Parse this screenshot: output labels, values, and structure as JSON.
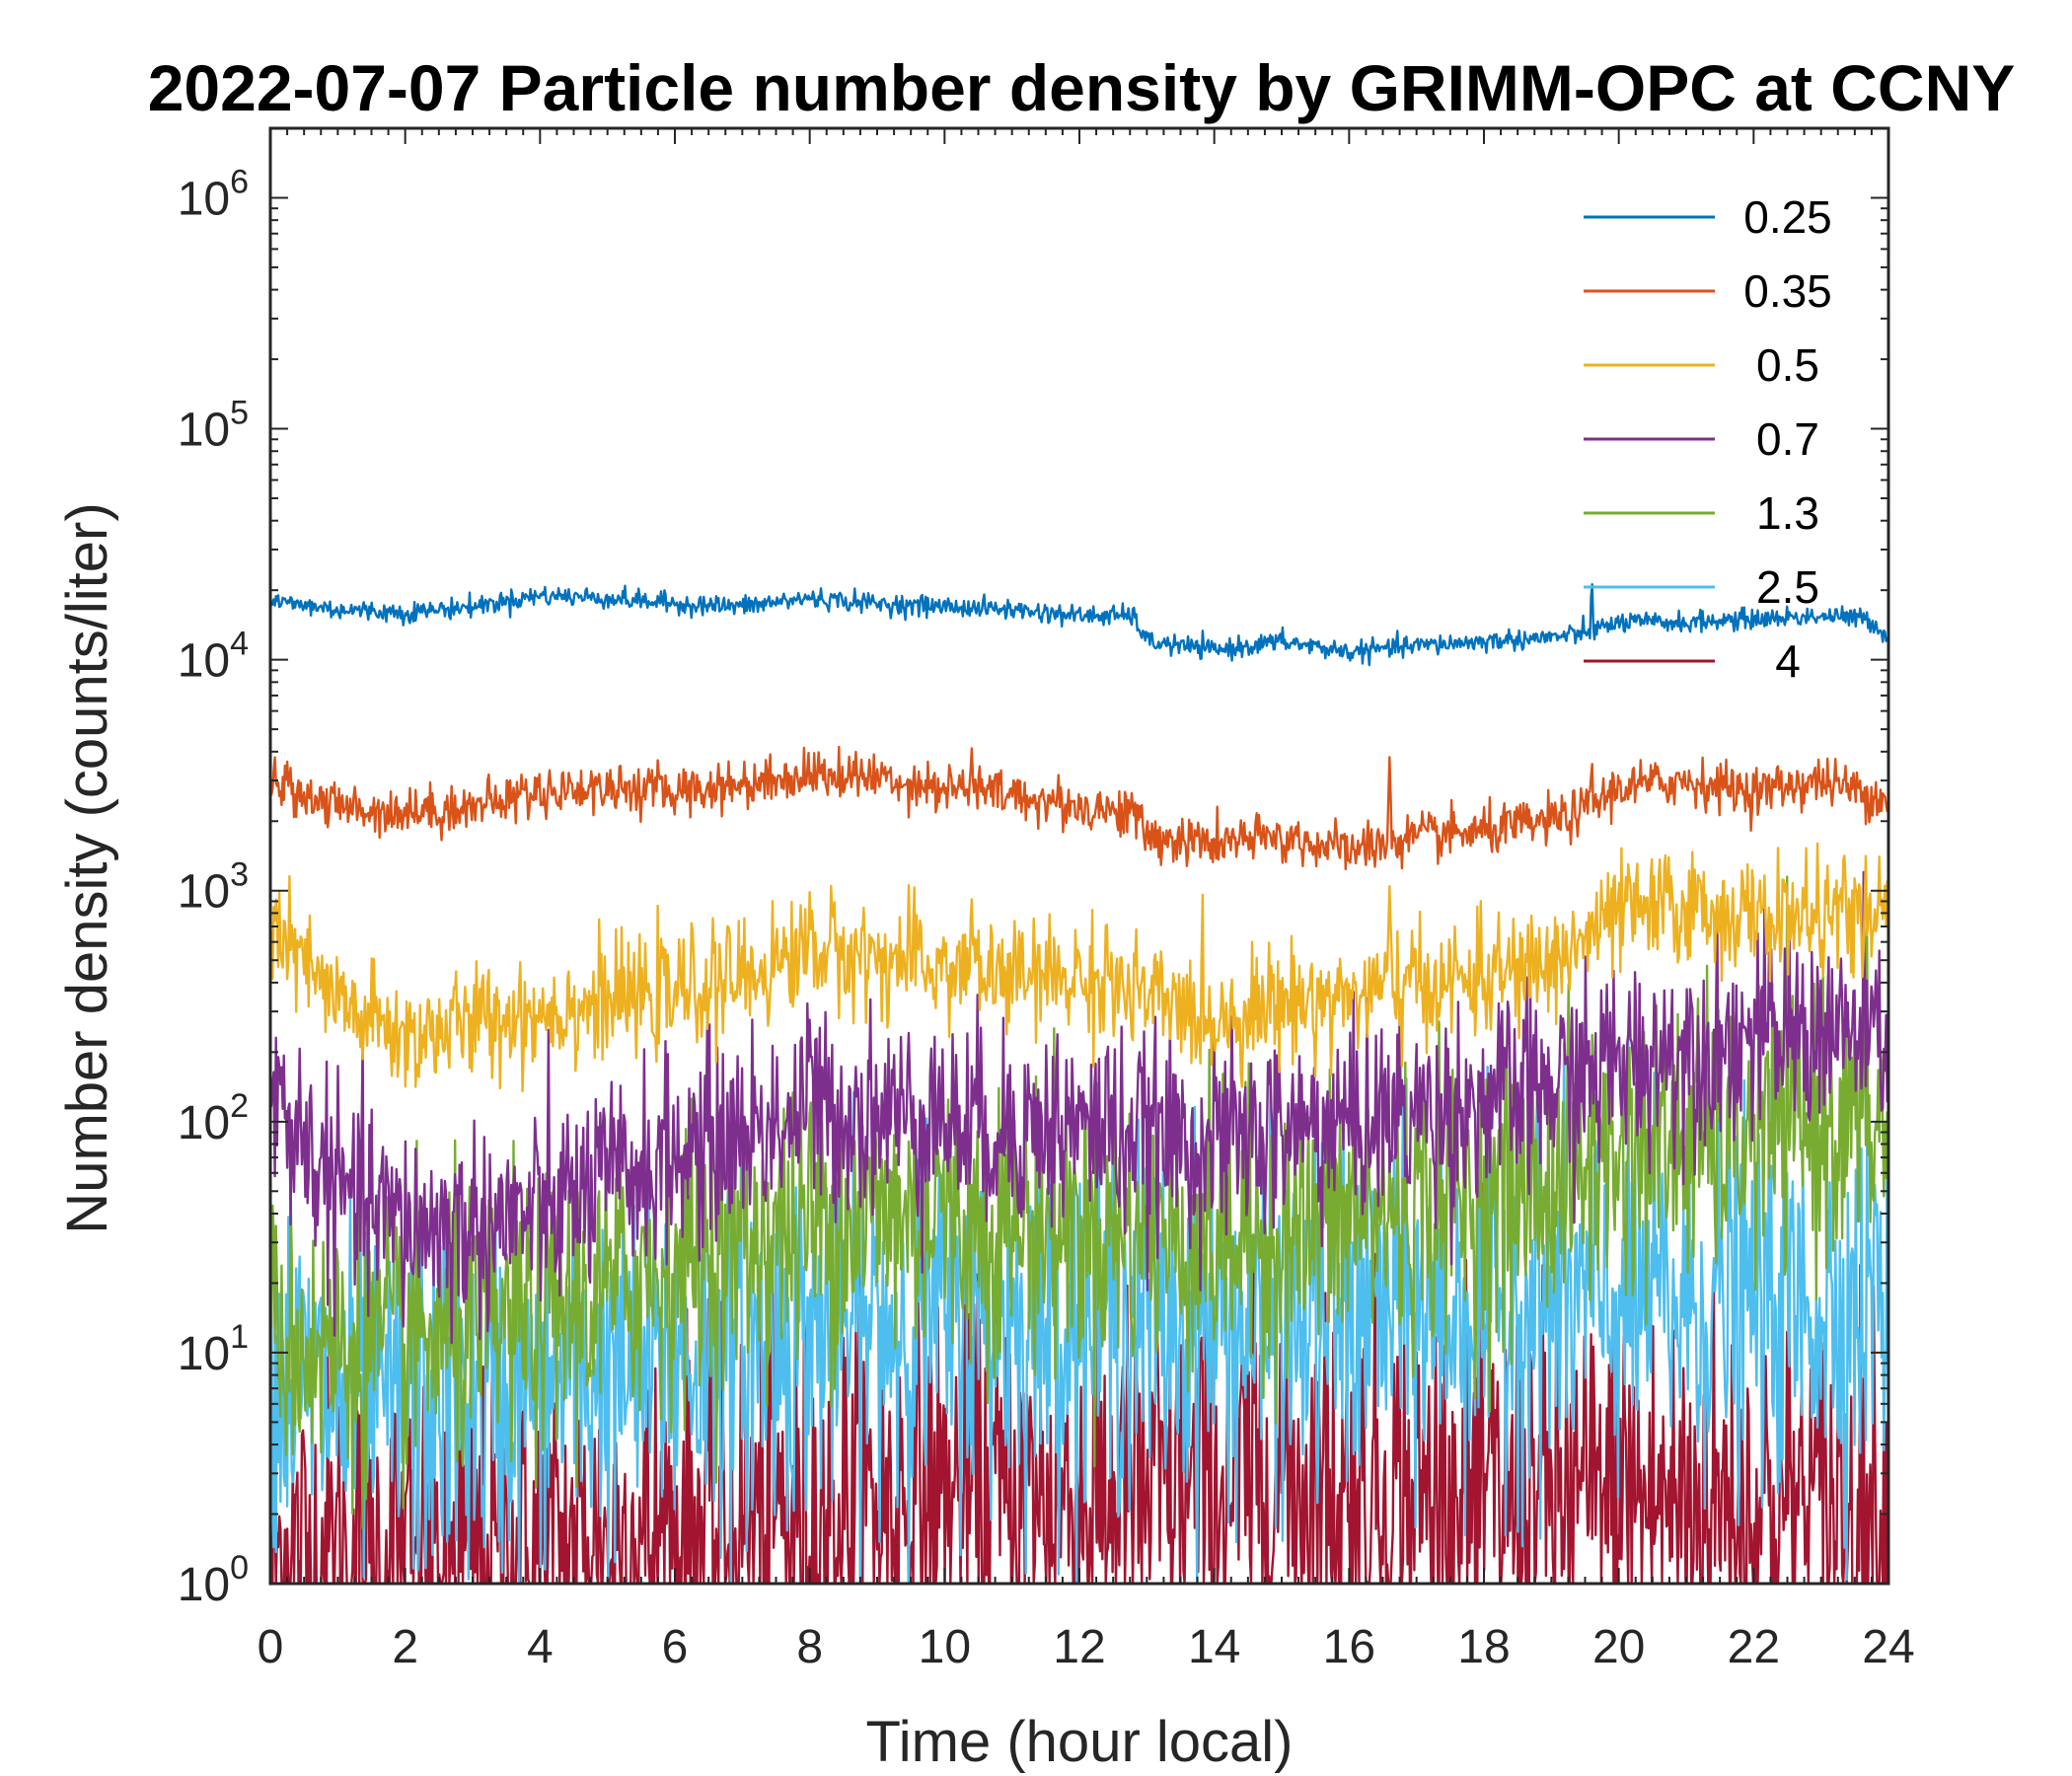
{
  "chart_data": {
    "type": "line",
    "title": "2022-07-07 Particle number density by GRIMM-OPC at CCNY",
    "xlabel": "Time (hour local)",
    "ylabel": "Number density (counts/liter)",
    "xlim": [
      0,
      24
    ],
    "ylim": [
      1,
      2000000
    ],
    "yscale": "log",
    "xticks": [
      0,
      2,
      4,
      6,
      8,
      10,
      12,
      14,
      16,
      18,
      20,
      22,
      24
    ],
    "yticks": [
      {
        "value": 1,
        "base": "10",
        "exp": "0"
      },
      {
        "value": 10,
        "base": "10",
        "exp": "1"
      },
      {
        "value": 100,
        "base": "10",
        "exp": "2"
      },
      {
        "value": 1000,
        "base": "10",
        "exp": "3"
      },
      {
        "value": 10000,
        "base": "10",
        "exp": "4"
      },
      {
        "value": 100000,
        "base": "10",
        "exp": "5"
      },
      {
        "value": 1000000,
        "base": "10",
        "exp": "6"
      }
    ],
    "grid": false,
    "legend_position": "top-right",
    "sample_interval_hours": 0.0167,
    "series": [
      {
        "name": "0.25",
        "color": "#0072BD",
        "noise": 0.05,
        "spikes": [
          [
            19.6,
            24000
          ]
        ],
        "x": [
          0,
          1,
          2,
          3,
          4,
          5,
          6,
          7,
          8,
          9,
          10,
          11,
          12,
          12.8,
          13,
          14,
          15,
          16,
          17,
          18,
          19,
          19.5,
          20,
          21,
          22,
          23,
          23.7,
          24
        ],
        "y": [
          18000,
          16500,
          16000,
          17000,
          19000,
          18500,
          17500,
          17000,
          18500,
          17500,
          17000,
          16500,
          15500,
          15500,
          12000,
          11000,
          12000,
          10800,
          11500,
          12000,
          12500,
          13000,
          14500,
          14500,
          15000,
          15500,
          15000,
          12500
        ]
      },
      {
        "name": "0.35",
        "color": "#D95319",
        "noise": 0.12,
        "spikes": [
          [
            10.4,
            4500
          ],
          [
            16.6,
            3800
          ],
          [
            19.6,
            4000
          ]
        ],
        "x": [
          0,
          1,
          2,
          3,
          4,
          5,
          6,
          7,
          8,
          9,
          10,
          11,
          12,
          12.8,
          13,
          14,
          15,
          16,
          17,
          18,
          19,
          19.5,
          20,
          21,
          22,
          23,
          24
        ],
        "y": [
          3000,
          2300,
          2200,
          2300,
          2700,
          2800,
          2700,
          2900,
          3200,
          3100,
          2800,
          2600,
          2300,
          2200,
          1700,
          1600,
          1700,
          1500,
          1700,
          1800,
          2000,
          2200,
          2800,
          3000,
          2700,
          3000,
          2500
        ]
      },
      {
        "name": "0.5",
        "color": "#EDB120",
        "noise": 0.28,
        "spikes": [
          [
            8.0,
            1000
          ],
          [
            10.4,
            1000
          ],
          [
            12.4,
            850
          ],
          [
            16.6,
            1050
          ],
          [
            23.3,
            1100
          ]
        ],
        "x": [
          0,
          1,
          2,
          3,
          4,
          5,
          6,
          7,
          8,
          9,
          10,
          11,
          12,
          13,
          14,
          15,
          16,
          17,
          18,
          19,
          20,
          21,
          22,
          23,
          24
        ],
        "y": [
          700,
          320,
          230,
          270,
          300,
          330,
          360,
          420,
          560,
          510,
          460,
          420,
          420,
          340,
          280,
          330,
          350,
          390,
          420,
          480,
          800,
          850,
          760,
          780,
          750
        ]
      },
      {
        "name": "0.7",
        "color": "#7E2F8E",
        "noise": 0.5,
        "spikes": [
          [
            8.0,
            280
          ],
          [
            9.8,
            220
          ],
          [
            12.4,
            230
          ]
        ],
        "x": [
          0,
          1,
          2,
          3,
          4,
          5,
          6,
          7,
          8,
          9,
          10,
          11,
          12,
          13,
          14,
          15,
          16,
          17,
          18,
          19,
          20,
          21,
          22,
          23,
          24
        ],
        "y": [
          130,
          50,
          35,
          35,
          40,
          55,
          70,
          90,
          110,
          110,
          100,
          95,
          95,
          85,
          80,
          90,
          100,
          110,
          120,
          140,
          180,
          210,
          230,
          250,
          220
        ]
      },
      {
        "name": "1.3",
        "color": "#77AC30",
        "noise": 0.7,
        "spikes": [
          [
            8.0,
            110
          ],
          [
            9.9,
            80
          ]
        ],
        "x": [
          0,
          1,
          2,
          3,
          4,
          5,
          6,
          7,
          8,
          9,
          10,
          11,
          12,
          13,
          14,
          15,
          16,
          17,
          18,
          19,
          20,
          21,
          22,
          23,
          24
        ],
        "y": [
          12,
          10,
          11,
          12,
          14,
          18,
          25,
          30,
          35,
          40,
          38,
          35,
          35,
          32,
          30,
          33,
          38,
          42,
          45,
          55,
          70,
          80,
          90,
          100,
          95
        ]
      },
      {
        "name": "2.5",
        "color": "#4DBEEE",
        "noise": 0.9,
        "spikes": [
          [
            23.8,
            55
          ]
        ],
        "x": [
          0,
          1,
          2,
          3,
          4,
          5,
          6,
          7,
          8,
          9,
          10,
          11,
          12,
          13,
          14,
          15,
          16,
          17,
          18,
          19,
          20,
          21,
          22,
          23,
          24
        ],
        "y": [
          8,
          6,
          6,
          6,
          7,
          8,
          9,
          10,
          12,
          13,
          14,
          14,
          14,
          14,
          13,
          13,
          14,
          15,
          15,
          16,
          16,
          16,
          16,
          16,
          15
        ]
      },
      {
        "name": "4",
        "color": "#A2142F",
        "noise": 1.0,
        "spikes": [],
        "x": [
          0,
          2,
          4,
          6,
          8,
          10,
          12,
          14,
          15,
          16,
          18,
          20,
          22,
          24
        ],
        "y": [
          1.3,
          1.2,
          1.3,
          1.6,
          2.0,
          2.3,
          2.3,
          2.5,
          3.0,
          2.5,
          2.3,
          2.3,
          2.2,
          2.2
        ]
      }
    ]
  }
}
